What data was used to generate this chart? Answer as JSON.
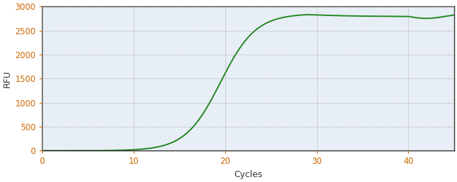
{
  "xlabel": "Cycles",
  "ylabel": "RFU",
  "xlim": [
    0,
    45
  ],
  "ylim": [
    0,
    3000
  ],
  "xticks": [
    0,
    10,
    20,
    30,
    40
  ],
  "yticks": [
    0,
    500,
    1000,
    1500,
    2000,
    2500,
    3000
  ],
  "line_color": "#228822",
  "line_width": 1.4,
  "background_color": "#ffffff",
  "plot_bg_color": "#e8eef5",
  "grid_color": "#888888",
  "tick_label_color": "#cc6600",
  "axis_label_color": "#444444",
  "sigmoid_L": 2850,
  "sigmoid_k": 0.52,
  "sigmoid_x0": 19.5,
  "figsize": [
    6.53,
    2.6
  ],
  "dpi": 100
}
